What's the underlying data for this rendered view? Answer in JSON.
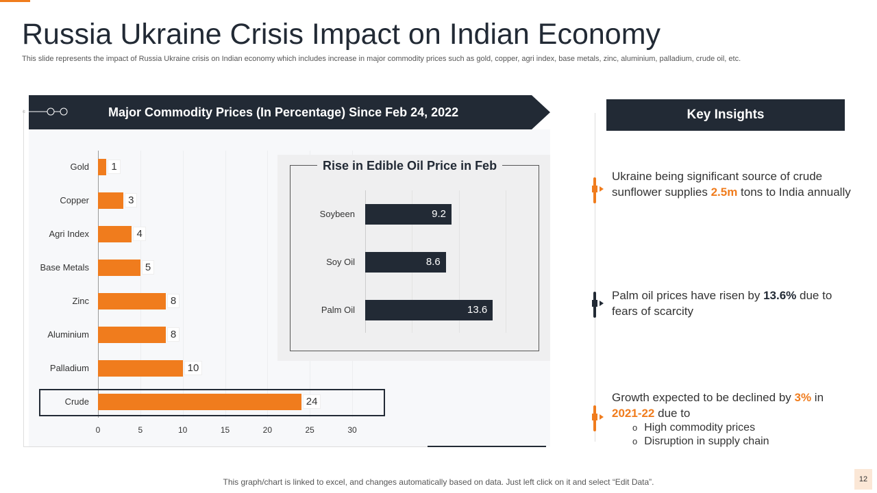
{
  "title": "Russia Ukraine Crisis Impact on Indian Economy",
  "subtitle": "This slide represents the impact of Russia Ukraine crisis on Indian economy which includes increase in major commodity prices such as gold, copper, agri index, base metals, zinc, aluminium, palladium, crude oil, etc.",
  "banner_title": "Major Commodity Prices (In Percentage) Since Feb 24, 2022",
  "chart_data": [
    {
      "type": "bar",
      "orientation": "horizontal",
      "title": "Major Commodity Prices (In Percentage) Since Feb 24, 2022",
      "categories": [
        "Gold",
        "Copper",
        "Agri Index",
        "Base Metals",
        "Zinc",
        "Aluminium",
        "Palladium",
        "Crude"
      ],
      "values": [
        1,
        3,
        4,
        5,
        8,
        8,
        10,
        24
      ],
      "xlim": [
        0,
        30
      ],
      "xticks": [
        "0",
        "5",
        "10",
        "15",
        "20",
        "25",
        "30"
      ],
      "color": "#f07c1d",
      "highlight": "Crude"
    },
    {
      "type": "bar",
      "orientation": "horizontal",
      "title": "Rise in Edible Oil Price in Feb",
      "categories": [
        "Soybeen",
        "Soy Oil",
        "Palm Oil"
      ],
      "values": [
        9.2,
        8.6,
        13.6
      ],
      "xlim": [
        0,
        20
      ],
      "color": "#222a35"
    }
  ],
  "insights": {
    "title": "Key Insights",
    "items": [
      {
        "pre": "Ukraine being significant source of crude sunflower supplies ",
        "hl": "2.5m",
        "post": " tons to India annually"
      },
      {
        "pre": "Palm oil prices have risen by ",
        "hl": "13.6%",
        "post": " due to fears of scarcity"
      },
      {
        "pre": "Growth expected to be declined by ",
        "hl": "3%",
        "mid": " in ",
        "hl2": "2021-22",
        "post": " due to",
        "bullets": [
          "High commodity prices",
          "Disruption in supply chain"
        ]
      }
    ]
  },
  "footer": "This graph/chart is linked to excel, and changes automatically based on data. Just left click on it and select “Edit Data”.",
  "page_number": "12",
  "colors": {
    "accent": "#f07c1d",
    "dark": "#222a35"
  }
}
